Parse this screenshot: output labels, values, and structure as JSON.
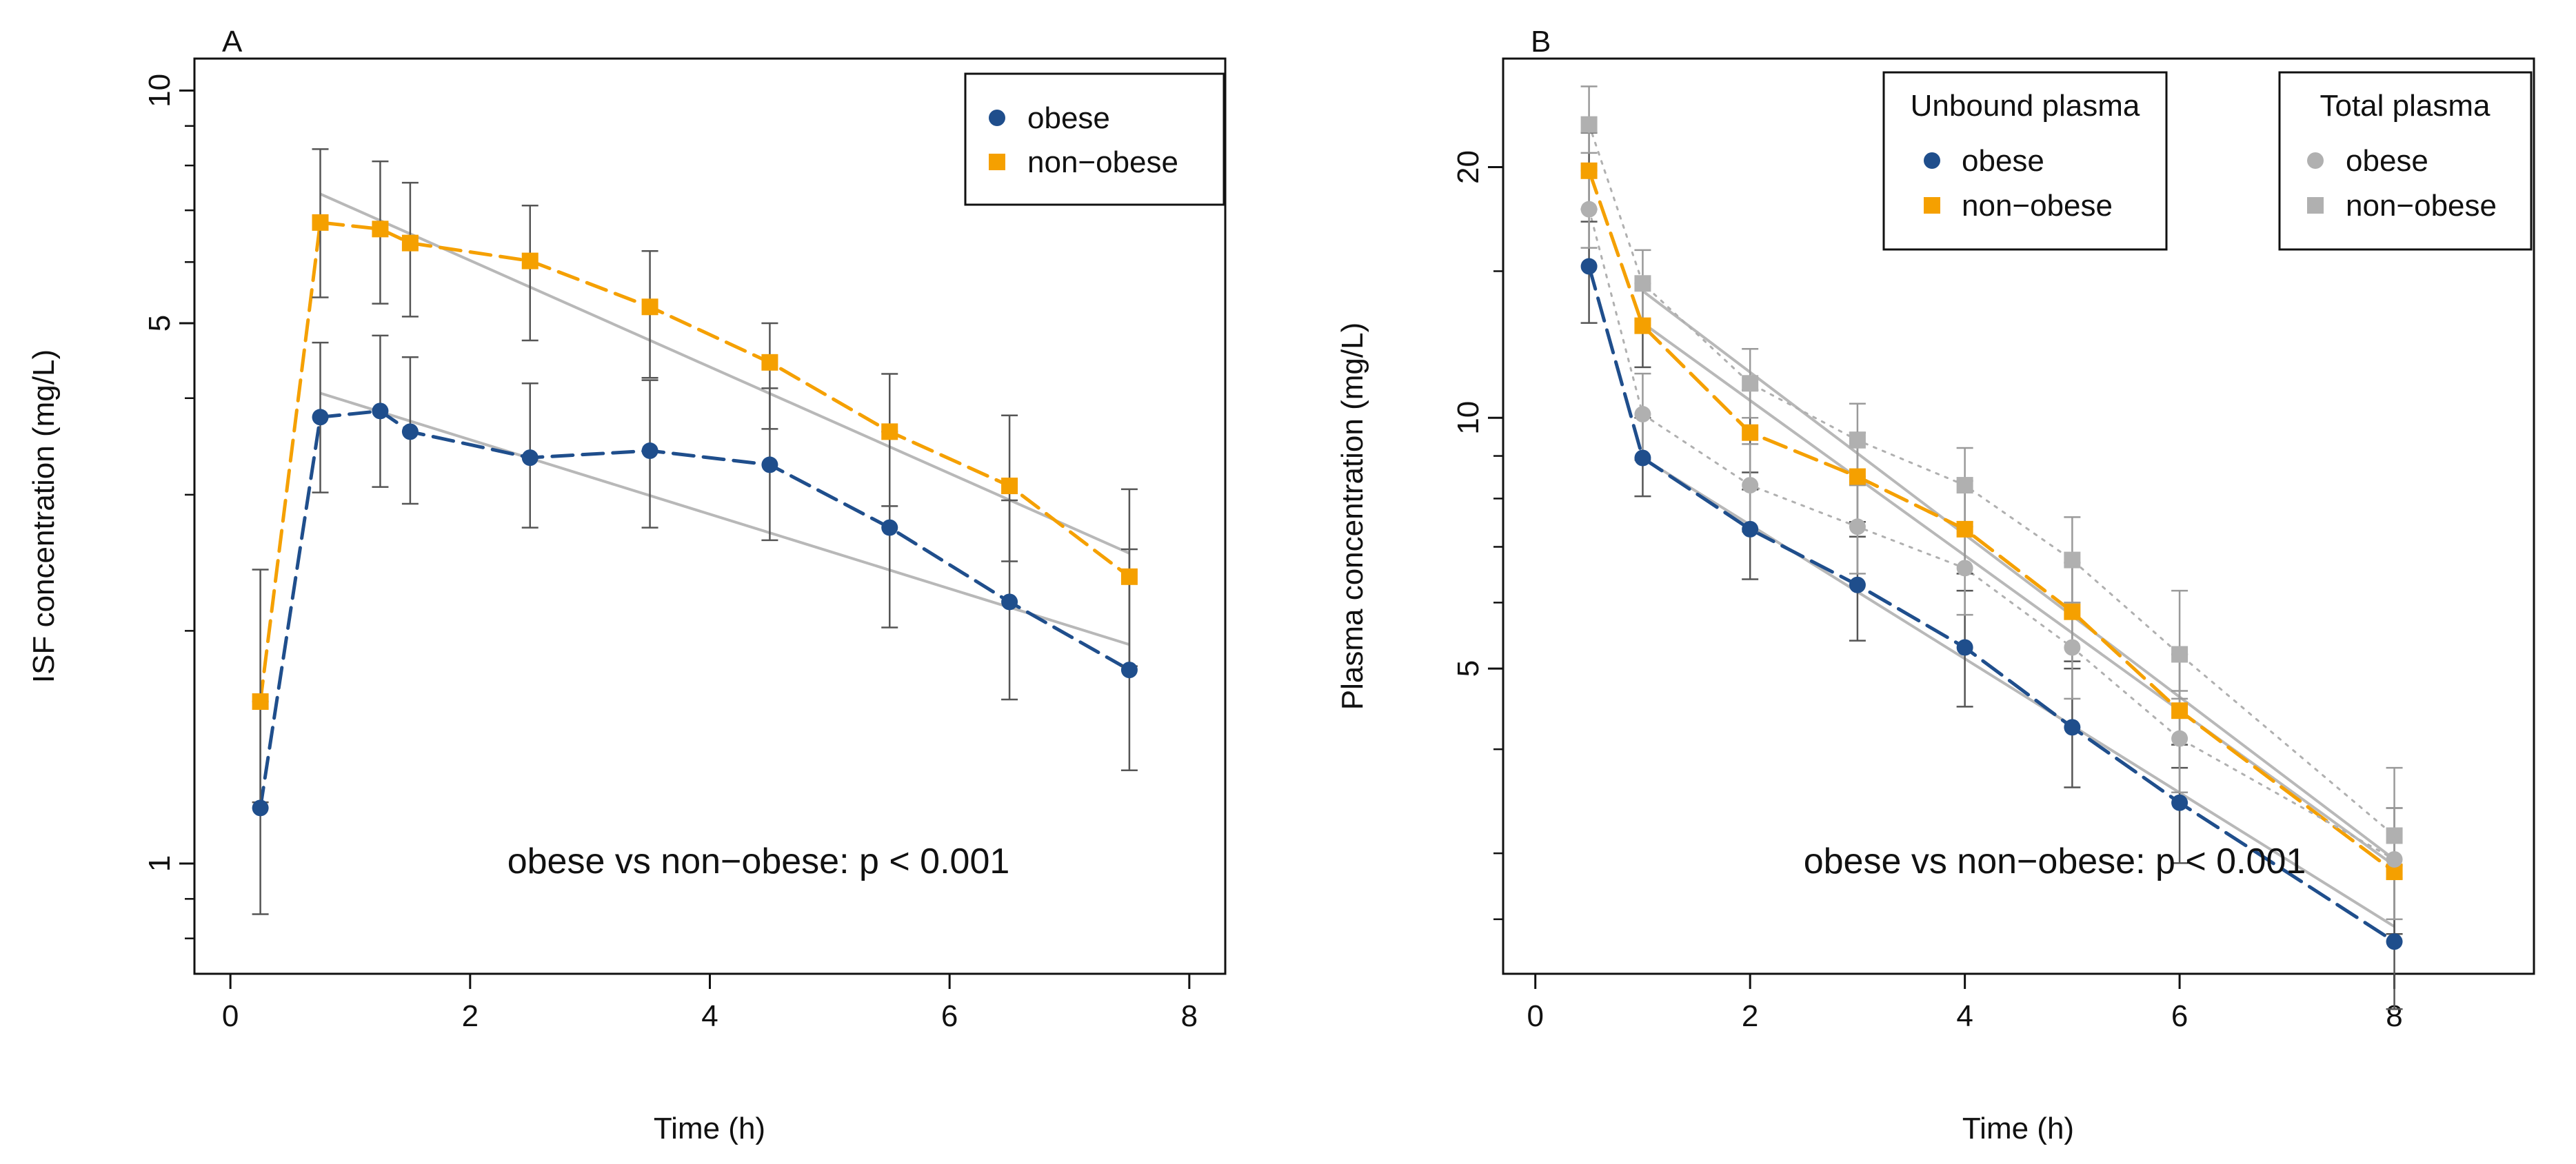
{
  "figure": {
    "background": "#ffffff"
  },
  "colors": {
    "obese": "#1f4e8c",
    "non_obese": "#f5a000",
    "total": "#b0b0b0",
    "fit": "#b8b8b8",
    "axis": "#111111"
  },
  "chart_data": [
    {
      "id": "A",
      "panel_label": "A",
      "type": "line",
      "scale_y": "log",
      "xlabel": "Time (h)",
      "ylabel": "ISF concentration (mg/L)",
      "xlim": [
        -0.3,
        8.3
      ],
      "ylim": [
        0.72,
        11
      ],
      "xticks": [
        0,
        2,
        4,
        6,
        8
      ],
      "xtick_labels": [
        "0",
        "2",
        "4",
        "6",
        "8"
      ],
      "yticks": [
        1,
        5,
        10
      ],
      "ytick_labels": [
        "1",
        "5",
        "10"
      ],
      "minor_yticks": [
        0.8,
        0.9,
        2,
        3,
        4,
        6,
        7,
        8,
        9
      ],
      "annotation": "obese vs non−obese: p < 0.001",
      "legend": {
        "position": "top-right",
        "title": "",
        "entries": [
          {
            "label": "obese",
            "marker": "circle",
            "color": "#1f4e8c"
          },
          {
            "label": "non−obese",
            "marker": "square",
            "color": "#f5a000"
          }
        ]
      },
      "series": [
        {
          "name": "obese",
          "marker": "circle",
          "color": "#1f4e8c",
          "x": [
            0.25,
            0.75,
            1.25,
            1.5,
            2.5,
            3.5,
            4.5,
            5.5,
            6.5,
            7.5
          ],
          "y": [
            1.18,
            3.78,
            3.85,
            3.62,
            3.35,
            3.42,
            3.28,
            2.72,
            2.18,
            1.78
          ],
          "err_lo": [
            0.86,
            3.02,
            3.07,
            2.92,
            2.72,
            2.72,
            2.62,
            2.02,
            1.63,
            1.32
          ],
          "err_hi": [
            1.62,
            4.72,
            4.82,
            4.52,
            4.18,
            4.22,
            4.12,
            3.62,
            2.95,
            2.55
          ],
          "fit_x": [
            0.75,
            7.5
          ],
          "fit_y": [
            4.06,
            1.92
          ]
        },
        {
          "name": "non−obese",
          "marker": "square",
          "color": "#f5a000",
          "x": [
            0.25,
            0.75,
            1.25,
            1.5,
            2.5,
            3.5,
            4.5,
            5.5,
            6.5,
            7.5
          ],
          "y": [
            1.62,
            6.75,
            6.62,
            6.35,
            6.02,
            5.25,
            4.45,
            3.62,
            3.08,
            2.35
          ],
          "err_lo": [
            1.2,
            5.4,
            5.3,
            5.1,
            4.75,
            4.25,
            3.65,
            2.9,
            2.46,
            1.8
          ],
          "err_hi": [
            2.4,
            8.4,
            8.1,
            7.6,
            7.1,
            6.2,
            5.0,
            4.3,
            3.8,
            3.05
          ],
          "fit_x": [
            0.75,
            7.5
          ],
          "fit_y": [
            7.35,
            2.52
          ]
        }
      ]
    },
    {
      "id": "B",
      "panel_label": "B",
      "type": "line",
      "scale_y": "log",
      "xlabel": "Time (h)",
      "ylabel": "Plasma concentration (mg/L)",
      "xlim": [
        -0.3,
        9.3
      ],
      "ylim": [
        2.15,
        27
      ],
      "xticks": [
        0,
        2,
        4,
        6,
        8
      ],
      "xtick_labels": [
        "0",
        "2",
        "4",
        "6",
        "8"
      ],
      "yticks": [
        5,
        10,
        20
      ],
      "ytick_labels": [
        "5",
        "10",
        "20"
      ],
      "minor_yticks": [
        2.5,
        3,
        4,
        6,
        7,
        8,
        9,
        15
      ],
      "annotation": "obese vs non−obese: p < 0.001",
      "legends": [
        {
          "position": "top-center",
          "title": "Unbound plasma",
          "entries": [
            {
              "label": "obese",
              "marker": "circle",
              "color": "#1f4e8c"
            },
            {
              "label": "non−obese",
              "marker": "square",
              "color": "#f5a000"
            }
          ]
        },
        {
          "position": "top-right",
          "title": "Total plasma",
          "entries": [
            {
              "label": "obese",
              "marker": "circle",
              "color": "#b0b0b0"
            },
            {
              "label": "non−obese",
              "marker": "square",
              "color": "#b0b0b0"
            }
          ]
        }
      ],
      "series": [
        {
          "name": "obese (unbound)",
          "marker": "circle",
          "color": "#1f4e8c",
          "style": "solid",
          "x": [
            0.5,
            1,
            2,
            3,
            4,
            5,
            6,
            8
          ],
          "y": [
            15.2,
            8.95,
            7.35,
            6.3,
            5.3,
            4.25,
            3.45,
            2.35
          ],
          "err_lo": [
            13.0,
            8.05,
            6.4,
            5.4,
            4.5,
            3.6,
            2.92,
            1.95
          ],
          "err_hi": [
            17.2,
            10.0,
            8.2,
            7.2,
            6.2,
            5.0,
            4.05,
            2.9
          ],
          "fit_x": [
            1,
            8
          ],
          "fit_y": [
            8.95,
            2.45
          ]
        },
        {
          "name": "non−obese (unbound)",
          "marker": "square",
          "color": "#f5a000",
          "style": "solid",
          "x": [
            0.5,
            1,
            2,
            3,
            4,
            5,
            6,
            8
          ],
          "y": [
            19.8,
            12.9,
            9.6,
            8.5,
            7.35,
            5.85,
            4.45,
            2.85
          ],
          "err_lo": [
            17.8,
            11.5,
            8.6,
            7.5,
            6.5,
            5.1,
            3.8,
            2.4
          ],
          "err_hi": [
            22.0,
            14.5,
            10.8,
            9.6,
            8.4,
            6.7,
            5.2,
            3.4
          ],
          "fit_x": [
            1,
            8
          ],
          "fit_y": [
            13.0,
            2.9
          ]
        },
        {
          "name": "obese (total)",
          "marker": "circle",
          "color": "#b0b0b0",
          "style": "dotted",
          "x": [
            0.5,
            1,
            2,
            3,
            4,
            5,
            6,
            8
          ],
          "y": [
            17.8,
            10.1,
            8.3,
            7.4,
            6.6,
            5.3,
            4.12,
            2.95
          ],
          "err_lo": [
            16.0,
            8.9,
            7.3,
            6.5,
            5.8,
            4.6,
            3.55,
            2.5
          ],
          "err_hi": [
            19.8,
            11.3,
            9.3,
            8.3,
            7.4,
            6.0,
            4.7,
            3.4
          ],
          "fit_x": [],
          "fit_y": []
        },
        {
          "name": "non−obese (total)",
          "marker": "square",
          "color": "#b0b0b0",
          "style": "dotted",
          "x": [
            0.5,
            1,
            2,
            3,
            4,
            5,
            6,
            8
          ],
          "y": [
            22.5,
            14.5,
            11.0,
            9.4,
            8.3,
            6.75,
            5.2,
            3.15
          ],
          "err_lo": [
            20.8,
            13.1,
            10.0,
            8.5,
            7.5,
            6.0,
            4.6,
            2.8
          ],
          "err_hi": [
            25.0,
            15.9,
            12.1,
            10.4,
            9.2,
            7.6,
            6.2,
            3.8
          ],
          "fit_x": [
            1,
            8
          ],
          "fit_y": [
            14.2,
            2.95
          ]
        }
      ]
    }
  ]
}
